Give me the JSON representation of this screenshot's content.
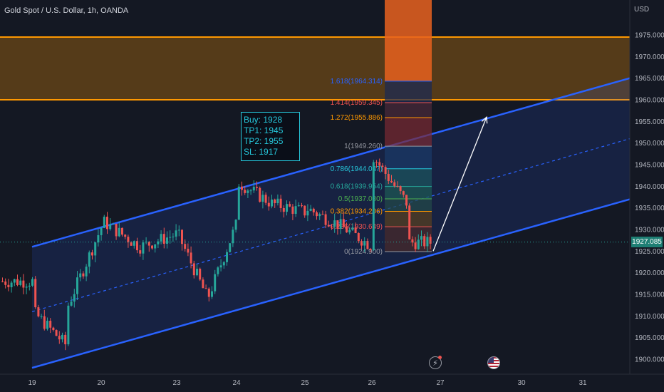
{
  "header": {
    "title": "Gold Spot / U.S. Dollar, 1h, OANDA",
    "currency": "USD"
  },
  "colors": {
    "background": "#141823",
    "up": "#26a69a",
    "down": "#ef5350",
    "channel": "#2962ff",
    "resistance": "#ff9800",
    "axis_text": "#b2b5be",
    "price_badge": "#1e7f74",
    "arrow": "#ffffff"
  },
  "icons": {
    "event_1": "lightning-icon",
    "event_2": "us-flag-icon"
  },
  "trade_box": {
    "buy": "Buy: 1928",
    "tp1": "TP1: 1945",
    "tp2": "TP2: 1955",
    "sl": "SL: 1917"
  },
  "current_price": "1927.085",
  "chart_data": {
    "type": "candlestick",
    "title": "Gold Spot / U.S. Dollar, 1h, OANDA",
    "ylabel": "USD",
    "ylim": [
      1898,
      1978
    ],
    "y_ticks": [
      "1900.000",
      "1905.000",
      "1910.000",
      "1915.000",
      "1920.000",
      "1925.000",
      "1930.000",
      "1935.000",
      "1940.000",
      "1945.000",
      "1950.000",
      "1955.000",
      "1960.000",
      "1965.000",
      "1970.000",
      "1975.000"
    ],
    "x_ticks": [
      "19",
      "20",
      "23",
      "24",
      "25",
      "26",
      "27",
      "30",
      "31"
    ],
    "resistance_zone": [
      1960,
      1974.5
    ],
    "channel": {
      "upper": [
        [
          "19",
          1926
        ],
        [
          "31+",
          1965
        ]
      ],
      "mid": [
        [
          "19",
          1911
        ],
        [
          "31+",
          1951
        ]
      ],
      "lower": [
        [
          "19",
          1898
        ],
        [
          "31+",
          1937
        ]
      ]
    },
    "fibonacci": [
      {
        "level": "1.618",
        "label": "1.618(1964.314)",
        "price": 1964.314
      },
      {
        "level": "1.414",
        "label": "1.414(1959.345)",
        "price": 1959.345
      },
      {
        "level": "1.272",
        "label": "1.272(1955.886)",
        "price": 1955.886
      },
      {
        "level": "1",
        "label": "1(1949.260)",
        "price": 1949.26
      },
      {
        "level": "0.786",
        "label": "0.786(1944.047)",
        "price": 1944.047
      },
      {
        "level": "0.618",
        "label": "0.618(1939.954)",
        "price": 1939.954
      },
      {
        "level": "0.5",
        "label": "0.5(1937.080)",
        "price": 1937.08
      },
      {
        "level": "0.382",
        "label": "0.382(1934.206)",
        "price": 1934.206
      },
      {
        "level": "0.236",
        "label": "0.236(1930.649)",
        "price": 1930.649
      },
      {
        "level": "0",
        "label": "0(1924.900)",
        "price": 1924.9
      }
    ],
    "projection": {
      "from": [
        "26-27",
        1925
      ],
      "to": [
        "27-30",
        1956
      ]
    },
    "series_anchors": [
      [
        "19",
        1918
      ],
      [
        "19",
        1911
      ],
      [
        "19-20",
        1903
      ],
      [
        "19-20",
        1912
      ],
      [
        "20",
        1931
      ],
      [
        "20",
        1928
      ],
      [
        "20",
        1932
      ],
      [
        "20-23",
        1926
      ],
      [
        "23",
        1929
      ],
      [
        "23",
        1922
      ],
      [
        "23",
        1929
      ],
      [
        "23-24",
        1914
      ],
      [
        "24",
        1932
      ],
      [
        "24",
        1937
      ],
      [
        "24",
        1941
      ],
      [
        "24-25",
        1936
      ],
      [
        "25",
        1934
      ],
      [
        "25",
        1940
      ],
      [
        "25",
        1935
      ],
      [
        "25-26",
        1931
      ],
      [
        "26",
        1926
      ],
      [
        "26",
        1937
      ],
      [
        "26",
        1948
      ],
      [
        "26",
        1947
      ],
      [
        "26-27",
        1936
      ],
      [
        "26-27",
        1927
      ]
    ]
  }
}
